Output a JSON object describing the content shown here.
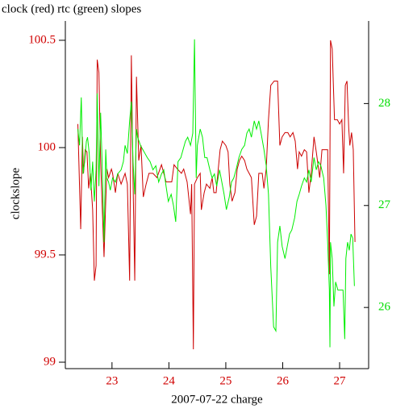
{
  "chart_data": {
    "type": "line",
    "title": "clock (red) rtc (green) slopes",
    "x_label": "2007-07-22 charge",
    "y_label": "clockslope",
    "xlim": [
      22.18,
      27.51
    ],
    "xticks": [
      23,
      24,
      25,
      26,
      27
    ],
    "ylim": [
      98.97,
      100.59
    ],
    "yticks": [
      99,
      99.5,
      100,
      100.5
    ],
    "y2lim": [
      25.4,
      28.81
    ],
    "y2ticks": [
      26,
      27,
      28
    ],
    "series": [
      {
        "color": "#cc0000",
        "x": [
          22.4,
          22.45,
          22.48,
          22.5,
          22.53,
          22.56,
          22.59,
          22.62,
          22.66,
          22.69,
          22.72,
          22.74,
          22.77,
          22.8,
          22.83,
          22.86,
          22.89,
          22.91,
          22.94,
          22.99,
          23.01,
          23.06,
          23.1,
          23.16,
          23.23,
          23.27,
          23.31,
          23.34,
          23.37,
          23.4,
          23.43,
          23.47,
          23.51,
          23.55,
          23.6,
          23.65,
          23.72,
          23.79,
          23.87,
          23.91,
          23.95,
          24.01,
          24.05,
          24.09,
          24.15,
          24.22,
          24.26,
          24.32,
          24.38,
          24.4,
          24.43,
          24.45,
          24.5,
          24.55,
          24.57,
          24.62,
          24.66,
          24.72,
          24.76,
          24.79,
          24.83,
          24.86,
          24.9,
          24.94,
          25.0,
          25.04,
          25.07,
          25.11,
          25.16,
          25.2,
          25.24,
          25.28,
          25.33,
          25.37,
          25.41,
          25.45,
          25.5,
          25.54,
          25.58,
          25.64,
          25.67,
          25.71,
          25.75,
          25.79,
          25.85,
          25.91,
          25.95,
          25.99,
          26.04,
          26.09,
          26.13,
          26.18,
          26.22,
          26.26,
          26.29,
          26.33,
          26.38,
          26.42,
          26.46,
          26.5,
          26.55,
          26.59,
          26.65,
          26.69,
          26.74,
          26.79,
          26.82,
          26.84,
          26.87,
          26.91,
          26.96,
          27.0,
          27.04,
          27.07,
          27.1,
          27.13,
          27.16,
          27.18,
          27.21,
          27.24,
          27.27
        ],
        "values": [
          100.11,
          99.62,
          100.05,
          99.88,
          99.99,
          99.98,
          99.81,
          99.88,
          99.71,
          99.38,
          99.45,
          100.41,
          100.35,
          99.94,
          99.71,
          99.49,
          99.75,
          99.9,
          99.86,
          99.9,
          99.88,
          99.79,
          99.88,
          99.83,
          99.88,
          99.83,
          99.38,
          100.43,
          99.84,
          99.38,
          100.33,
          99.94,
          100.01,
          99.77,
          99.83,
          99.88,
          99.88,
          99.86,
          99.92,
          99.88,
          99.84,
          99.84,
          99.84,
          99.92,
          99.9,
          99.88,
          99.9,
          99.84,
          99.69,
          99.83,
          99.06,
          99.83,
          99.86,
          99.88,
          99.71,
          99.79,
          99.83,
          99.81,
          99.86,
          99.79,
          99.79,
          99.88,
          99.99,
          100.03,
          100.01,
          99.98,
          99.83,
          99.75,
          99.79,
          99.9,
          99.94,
          99.96,
          99.94,
          99.9,
          99.88,
          99.86,
          99.64,
          99.68,
          99.88,
          99.88,
          99.81,
          99.9,
          100.13,
          100.29,
          100.31,
          100.31,
          100.01,
          100.05,
          100.07,
          100.07,
          100.05,
          100.07,
          100.03,
          99.9,
          99.98,
          99.96,
          99.99,
          99.98,
          99.79,
          99.88,
          100.05,
          99.98,
          99.86,
          99.99,
          99.99,
          99.99,
          99.41,
          100.5,
          100.46,
          100.13,
          100.13,
          100.11,
          100.13,
          99.88,
          100.29,
          100.31,
          100.09,
          100.01,
          100.07,
          99.99,
          99.56
        ]
      },
      {
        "color": "#00ee00",
        "axis": "y2",
        "x": [
          22.4,
          22.43,
          22.46,
          22.49,
          22.52,
          22.55,
          22.57,
          22.6,
          22.63,
          22.66,
          22.69,
          22.72,
          22.74,
          22.77,
          22.8,
          22.83,
          22.86,
          22.89,
          22.91,
          22.94,
          22.97,
          23.01,
          23.06,
          23.1,
          23.16,
          23.2,
          23.23,
          23.27,
          23.31,
          23.34,
          23.37,
          23.4,
          23.43,
          23.45,
          23.5,
          23.54,
          23.58,
          23.62,
          23.67,
          23.72,
          23.77,
          23.82,
          23.87,
          23.91,
          23.95,
          23.99,
          24.04,
          24.08,
          24.12,
          24.16,
          24.21,
          24.25,
          24.29,
          24.33,
          24.38,
          24.42,
          24.45,
          24.48,
          24.5,
          24.55,
          24.59,
          24.63,
          24.67,
          24.72,
          24.76,
          24.8,
          24.84,
          24.89,
          24.93,
          24.97,
          25.01,
          25.06,
          25.1,
          25.14,
          25.18,
          25.23,
          25.28,
          25.33,
          25.37,
          25.41,
          25.45,
          25.5,
          25.54,
          25.58,
          25.62,
          25.67,
          25.71,
          25.75,
          25.79,
          25.84,
          25.88,
          25.91,
          25.95,
          25.99,
          26.04,
          26.08,
          26.12,
          26.16,
          26.21,
          26.25,
          26.29,
          26.33,
          26.38,
          26.42,
          26.46,
          26.5,
          26.55,
          26.59,
          26.63,
          26.67,
          26.72,
          26.76,
          26.79,
          26.82,
          26.83,
          26.84,
          26.87,
          26.9,
          26.93,
          26.97,
          27.01,
          27.06,
          27.09,
          27.11,
          27.14,
          27.17,
          27.2,
          27.23,
          27.26
        ],
        "values": [
          27.75,
          27.59,
          28.06,
          27.31,
          27.43,
          27.63,
          27.67,
          27.51,
          27.15,
          27.43,
          27.04,
          27.35,
          28.1,
          27.19,
          27.91,
          27.35,
          26.64,
          27.55,
          27.27,
          27.23,
          27.15,
          27.27,
          27.23,
          27.31,
          27.35,
          27.43,
          27.59,
          27.51,
          27.83,
          28.02,
          27.43,
          27.11,
          27.75,
          27.67,
          27.59,
          27.55,
          27.51,
          27.47,
          27.43,
          27.35,
          27.39,
          27.23,
          27.31,
          27.35,
          27.19,
          27.04,
          27.11,
          27.0,
          26.84,
          27.43,
          27.47,
          27.55,
          27.63,
          27.67,
          27.59,
          27.71,
          28.63,
          27.27,
          27.59,
          27.75,
          27.67,
          27.47,
          27.47,
          27.35,
          27.27,
          27.31,
          27.19,
          27.35,
          27.23,
          27.11,
          26.96,
          27.08,
          27.23,
          27.27,
          27.35,
          27.47,
          27.55,
          27.59,
          27.71,
          27.75,
          27.67,
          27.83,
          27.75,
          27.83,
          27.71,
          27.55,
          27.39,
          27.11,
          26.4,
          25.81,
          25.77,
          26.64,
          26.8,
          26.6,
          26.48,
          26.6,
          26.72,
          26.76,
          26.88,
          27.04,
          27.11,
          27.19,
          27.27,
          27.23,
          27.35,
          27.23,
          27.47,
          27.35,
          27.43,
          27.39,
          27.27,
          27.0,
          26.64,
          26.17,
          25.61,
          26.64,
          26.48,
          26.01,
          26.25,
          26.17,
          26.17,
          26.17,
          25.69,
          26.48,
          26.64,
          26.56,
          26.72,
          26.68,
          26.21
        ]
      }
    ]
  }
}
